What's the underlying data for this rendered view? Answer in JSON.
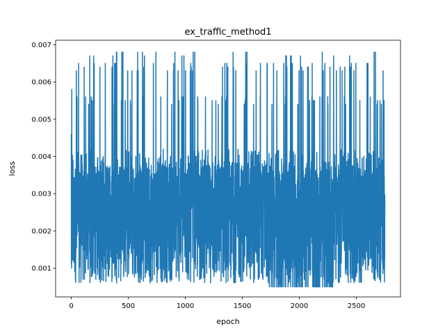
{
  "chart_data": {
    "type": "line",
    "title": "ex_traffic_method1",
    "xlabel": "epoch",
    "ylabel": "loss",
    "xlim": [
      -137.5,
      2887.5
    ],
    "ylim": [
      0.00023,
      0.00712
    ],
    "xticks": [
      0,
      500,
      1000,
      1500,
      2000,
      2500
    ],
    "yticks": [
      0.001,
      0.002,
      0.003,
      0.004,
      0.005,
      0.006,
      0.007
    ],
    "xtick_labels": [
      "0",
      "500",
      "1000",
      "1500",
      "2000",
      "2500"
    ],
    "ytick_labels": [
      "0.001",
      "0.002",
      "0.003",
      "0.004",
      "0.005",
      "0.006",
      "0.007"
    ],
    "grid": false,
    "line_color": "#1f77b4",
    "series": [
      {
        "x_start": 0,
        "x_end": 2750,
        "point_count": 2751,
        "y_min": 0.0005,
        "y_max": 0.0068,
        "initial_values": [
          0.0046,
          0.0011,
          0.0043,
          0.001,
          0.0058,
          0.0012,
          0.004
        ],
        "baseline_range": [
          0.0006,
          0.0042
        ],
        "spike_levels": [
          0.0068,
          0.0067,
          0.0065,
          0.0064,
          0.0063,
          0.0056,
          0.0055,
          0.0054
        ]
      }
    ]
  }
}
